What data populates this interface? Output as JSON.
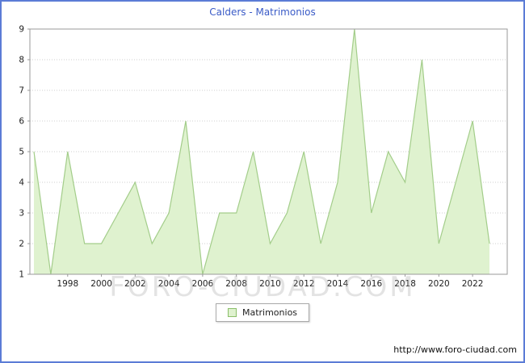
{
  "title": "Calders - Matrimonios",
  "watermark": "FORO-CIUDAD.COM",
  "legend": {
    "label": "Matrimonios"
  },
  "footer": {
    "url": "http://www.foro-ciudad.com"
  },
  "chart_data": {
    "type": "area",
    "title": "Calders - Matrimonios",
    "xlabel": "",
    "ylabel": "",
    "years": [
      1996,
      1997,
      1998,
      1999,
      2000,
      2001,
      2002,
      2003,
      2004,
      2005,
      2006,
      2007,
      2008,
      2009,
      2010,
      2011,
      2012,
      2013,
      2014,
      2015,
      2016,
      2017,
      2018,
      2019,
      2020,
      2021,
      2022,
      2023
    ],
    "values": [
      5,
      1,
      5,
      2,
      2,
      3,
      4,
      2,
      3,
      6,
      1,
      3,
      3,
      5,
      2,
      3,
      5,
      2,
      4,
      9,
      3,
      5,
      4,
      8,
      2,
      4,
      6,
      2
    ],
    "ylim": [
      1,
      9
    ],
    "yticks": [
      1,
      2,
      3,
      4,
      5,
      6,
      7,
      8,
      9
    ],
    "xtick_years": [
      1998,
      2000,
      2002,
      2004,
      2006,
      2008,
      2010,
      2012,
      2014,
      2016,
      2018,
      2020,
      2022
    ],
    "grid": "horizontal-dotted",
    "legend_position": "bottom-center",
    "colors": {
      "area_fill": "#dff2cf",
      "line": "#a3cd8a",
      "grid": "#cfcfcf",
      "plot_border": "#9a9a9a",
      "tick_text": "#222222",
      "title_text": "#3a5bc7",
      "frame_border": "#5b7cd6"
    }
  }
}
